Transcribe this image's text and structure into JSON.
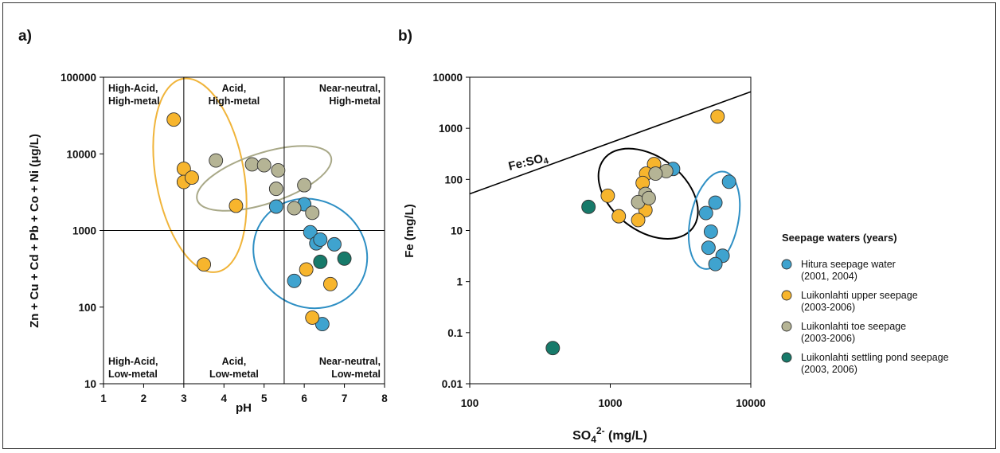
{
  "colors": {
    "hitura": "#3fa3cf",
    "luik_upper": "#f7b52d",
    "luik_toe": "#b5b495",
    "luik_pond": "#177a6a",
    "hitura_outline": "#2e8fc4",
    "upper_outline": "#f0b43a",
    "toe_outline": "#a8a887",
    "black": "#000000"
  },
  "chart_data": [
    {
      "type": "scatter",
      "panel_label": "a)",
      "xlabel": "pH",
      "ylabel": "Zn + Cu + Cd + Pb + Co + Ni (μg/L)",
      "xlim": [
        1,
        8
      ],
      "ylim": [
        10,
        100000
      ],
      "yscale": "log",
      "x_ticks": [
        "1",
        "2",
        "3",
        "4",
        "5",
        "6",
        "7",
        "8"
      ],
      "y_ticks": [
        "10",
        "100",
        "1000",
        "10000",
        "100000"
      ],
      "reference_lines": {
        "x": [
          3,
          5.5
        ],
        "y": [
          1000
        ]
      },
      "region_labels": [
        {
          "id": "ha_hm",
          "lines": [
            "High-Acid,",
            "High-metal"
          ]
        },
        {
          "id": "a_hm",
          "lines": [
            "Acid,",
            "High-metal"
          ]
        },
        {
          "id": "nn_hm",
          "lines": [
            "Near-neutral,",
            "High-metal"
          ]
        },
        {
          "id": "ha_lm",
          "lines": [
            "High-Acid,",
            "Low-metal"
          ]
        },
        {
          "id": "a_lm",
          "lines": [
            "Acid,",
            "Low-metal"
          ]
        },
        {
          "id": "nn_lm",
          "lines": [
            "Near-neutral,",
            "Low-metal"
          ]
        }
      ],
      "series": [
        {
          "key": "hitura",
          "points": [
            [
              5.3,
              2050
            ],
            [
              6.0,
              2200
            ],
            [
              6.15,
              950
            ],
            [
              6.3,
              680
            ],
            [
              6.4,
              760
            ],
            [
              6.75,
              660
            ],
            [
              5.75,
              220
            ],
            [
              6.45,
              60
            ]
          ]
        },
        {
          "key": "luik_upper",
          "points": [
            [
              2.75,
              28000
            ],
            [
              3.0,
              6400
            ],
            [
              3.0,
              4300
            ],
            [
              3.2,
              4900
            ],
            [
              4.3,
              2100
            ],
            [
              3.5,
              360
            ],
            [
              6.05,
              310
            ],
            [
              6.65,
              200
            ],
            [
              6.2,
              73
            ]
          ]
        },
        {
          "key": "luik_toe",
          "points": [
            [
              3.8,
              8200
            ],
            [
              4.7,
              7300
            ],
            [
              5.0,
              7100
            ],
            [
              5.35,
              6100
            ],
            [
              5.3,
              3500
            ],
            [
              6.0,
              3900
            ],
            [
              5.75,
              1950
            ],
            [
              6.2,
              1700
            ]
          ]
        },
        {
          "key": "luik_pond",
          "points": [
            [
              6.4,
              390
            ],
            [
              7.0,
              430
            ]
          ]
        }
      ],
      "ellipses": [
        {
          "key": "upper_outline",
          "cx": 3.4,
          "cy_log": 3.72,
          "rx": 1.1,
          "ry_log": 1.28,
          "angle": 10
        },
        {
          "key": "toe_outline",
          "cx": 5.0,
          "cy_log": 3.68,
          "rx": 1.75,
          "ry_log": 0.33,
          "angle": 18
        },
        {
          "key": "hitura_outline",
          "cx": 6.15,
          "cy_log": 2.7,
          "rx": 1.33,
          "ry_log": 0.76,
          "angle": 58
        }
      ]
    },
    {
      "type": "scatter",
      "panel_label": "b)",
      "xlabel_main": "SO",
      "xlabel_sub": "4",
      "xlabel_sup": "2-",
      "xlabel_tail": " (mg/L)",
      "ylabel": "Fe (mg/L)",
      "xlim": [
        100,
        10000
      ],
      "ylim": [
        0.01,
        10000
      ],
      "xscale": "log",
      "yscale": "log",
      "x_ticks": [
        "100",
        "1000",
        "10000"
      ],
      "y_ticks": [
        "0.01",
        "0.1",
        "1",
        "10",
        "100",
        "1000",
        "10000"
      ],
      "reference_line": {
        "label_main": "Fe:SO",
        "label_sub": "4",
        "from": [
          100,
          52
        ],
        "to": [
          10000,
          5200
        ]
      },
      "series": [
        {
          "key": "hitura",
          "points": [
            [
              2800,
              160
            ],
            [
              7000,
              90
            ],
            [
              5600,
              35
            ],
            [
              4800,
              22
            ],
            [
              5200,
              9.5
            ],
            [
              5000,
              4.6
            ],
            [
              6300,
              3.2
            ],
            [
              5600,
              2.2
            ]
          ]
        },
        {
          "key": "luik_upper",
          "points": [
            [
              5800,
              1700
            ],
            [
              2050,
              200
            ],
            [
              1800,
              130
            ],
            [
              1700,
              85
            ],
            [
              960,
              48
            ],
            [
              1150,
              19
            ],
            [
              1780,
              25
            ],
            [
              1580,
              16
            ]
          ]
        },
        {
          "key": "luik_toe",
          "points": [
            [
              2500,
              145
            ],
            [
              2100,
              130
            ],
            [
              1780,
              52
            ],
            [
              1580,
              36
            ],
            [
              1880,
              43
            ]
          ]
        },
        {
          "key": "luik_pond",
          "points": [
            [
              700,
              29
            ],
            [
              390,
              0.05
            ]
          ]
        }
      ],
      "ellipses": [
        {
          "key": "black",
          "cx_log": 3.27,
          "cy_log": 1.72,
          "rx_log": 0.4,
          "ry_log": 0.72,
          "angle": 38
        },
        {
          "key": "hitura_outline",
          "cx_log": 3.74,
          "cy_log": 1.2,
          "rx_log": 0.17,
          "ry_log": 0.97,
          "angle": 12
        }
      ]
    }
  ],
  "legend": {
    "title": "Seepage waters (years)",
    "items": [
      {
        "key": "hitura",
        "line1": "Hitura seepage water",
        "line2": "(2001, 2004)"
      },
      {
        "key": "luik_upper",
        "line1": "Luikonlahti upper seepage",
        "line2": "(2003-2006)"
      },
      {
        "key": "luik_toe",
        "line1": "Luikonlahti toe seepage",
        "line2": "(2003-2006)"
      },
      {
        "key": "luik_pond",
        "line1": "Luikonlahti settling pond seepage",
        "line2": "(2003, 2006)"
      }
    ]
  }
}
